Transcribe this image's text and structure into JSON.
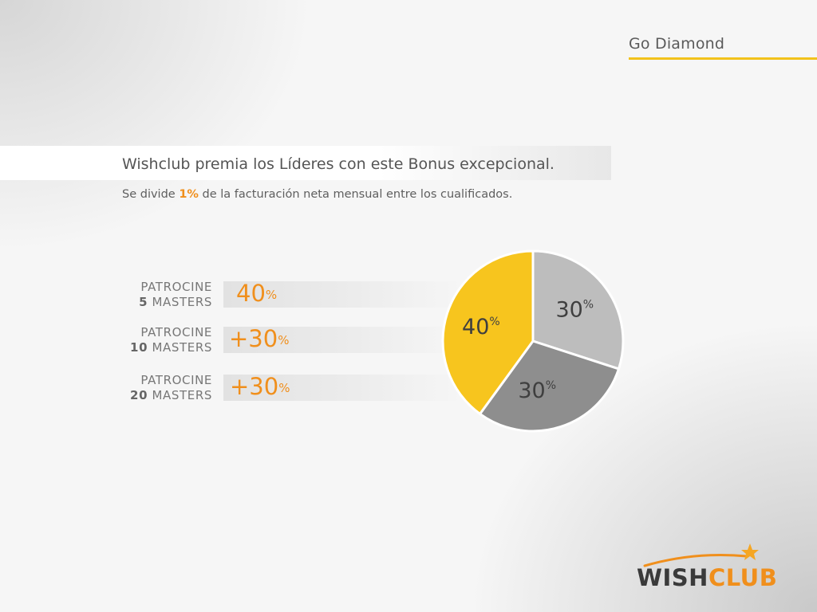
{
  "section": {
    "title": "Go Diamond"
  },
  "header": {
    "headline": "Wishclub premia los Líderes con este Bonus excepcional.",
    "sub_prefix": "Se divide ",
    "sub_highlight": "1%",
    "sub_suffix": " de la facturación neta mensual entre los cualificados."
  },
  "rows": [
    {
      "line1": "PATROCINE",
      "num": "5",
      "rest": " MASTERS",
      "value": "40",
      "unit": "%"
    },
    {
      "line1": "PATROCINE",
      "num": "10",
      "rest": " MASTERS",
      "value": "+30",
      "unit": "%"
    },
    {
      "line1": "PATROCINE",
      "num": "20",
      "rest": " MASTERS",
      "value": "+30",
      "unit": "%"
    }
  ],
  "chart_data": {
    "type": "pie",
    "slices": [
      {
        "label": "30",
        "unit": "%",
        "value": 30,
        "color": "#bdbdbd"
      },
      {
        "label": "30",
        "unit": "%",
        "value": 30,
        "color": "#8e8e8e"
      },
      {
        "label": "40",
        "unit": "%",
        "value": 40,
        "color": "#f7c51e"
      }
    ]
  },
  "logo": {
    "part1": "WISH",
    "part2": "CLUB",
    "accent_color": "#f08f1c"
  }
}
